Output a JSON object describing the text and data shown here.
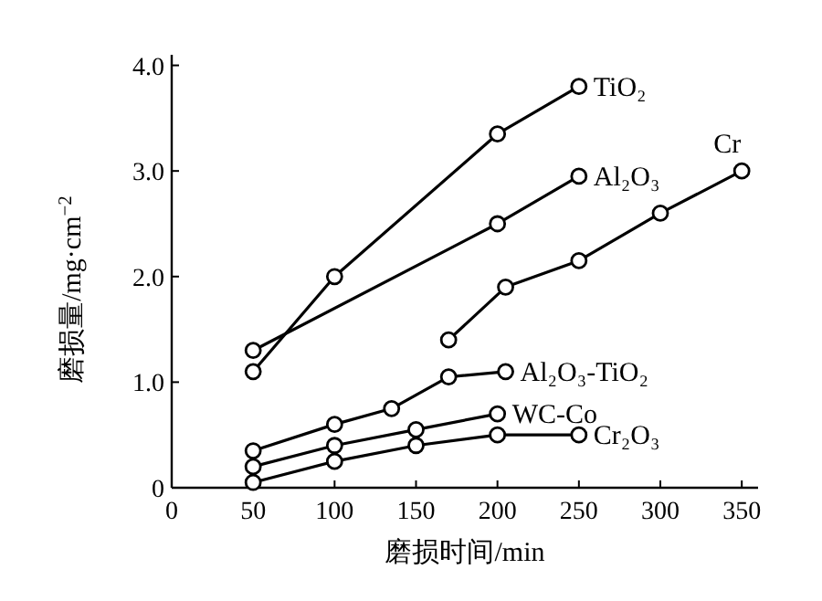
{
  "chart_data": {
    "type": "line",
    "xlabel": "磨损时间/min",
    "ylabel": "磨损量/mg·cm$^{−2}$",
    "xlim": [
      0,
      360
    ],
    "ylim": [
      0,
      4.1
    ],
    "xticks": [
      0,
      50,
      100,
      150,
      200,
      250,
      300,
      350
    ],
    "yticks": [
      0,
      {
        "value": 1,
        "label": "1.0"
      },
      {
        "value": 2,
        "label": "2.0"
      },
      {
        "value": 3,
        "label": "3.0"
      },
      {
        "value": 4,
        "label": "4.0"
      }
    ],
    "grid": false,
    "marker": "circle",
    "line_style": "solid",
    "series": [
      {
        "name": "TiO₂",
        "color": "#000000",
        "x": [
          50,
          100,
          200,
          250
        ],
        "values": [
          1.1,
          2.0,
          3.35,
          3.8
        ]
      },
      {
        "name": "Al₂O₃",
        "color": "#000000",
        "x": [
          50,
          200,
          250
        ],
        "values": [
          1.3,
          2.5,
          2.95
        ]
      },
      {
        "name": "Cr",
        "color": "#000000",
        "x": [
          170,
          205,
          250,
          300,
          350
        ],
        "values": [
          1.4,
          1.9,
          2.15,
          2.6,
          3.0
        ]
      },
      {
        "name": "Al₂O₃-TiO₂",
        "color": "#000000",
        "x": [
          50,
          100,
          135,
          170,
          205
        ],
        "values": [
          0.35,
          0.6,
          0.75,
          1.05,
          1.1
        ]
      },
      {
        "name": "WC-Co",
        "color": "#000000",
        "x": [
          50,
          100,
          150,
          200
        ],
        "values": [
          0.2,
          0.4,
          0.55,
          0.7
        ]
      },
      {
        "name": "Cr₂O₃",
        "color": "#000000",
        "x": [
          50,
          100,
          150,
          200,
          250
        ],
        "values": [
          0.05,
          0.25,
          0.4,
          0.5,
          0.5
        ]
      }
    ]
  }
}
